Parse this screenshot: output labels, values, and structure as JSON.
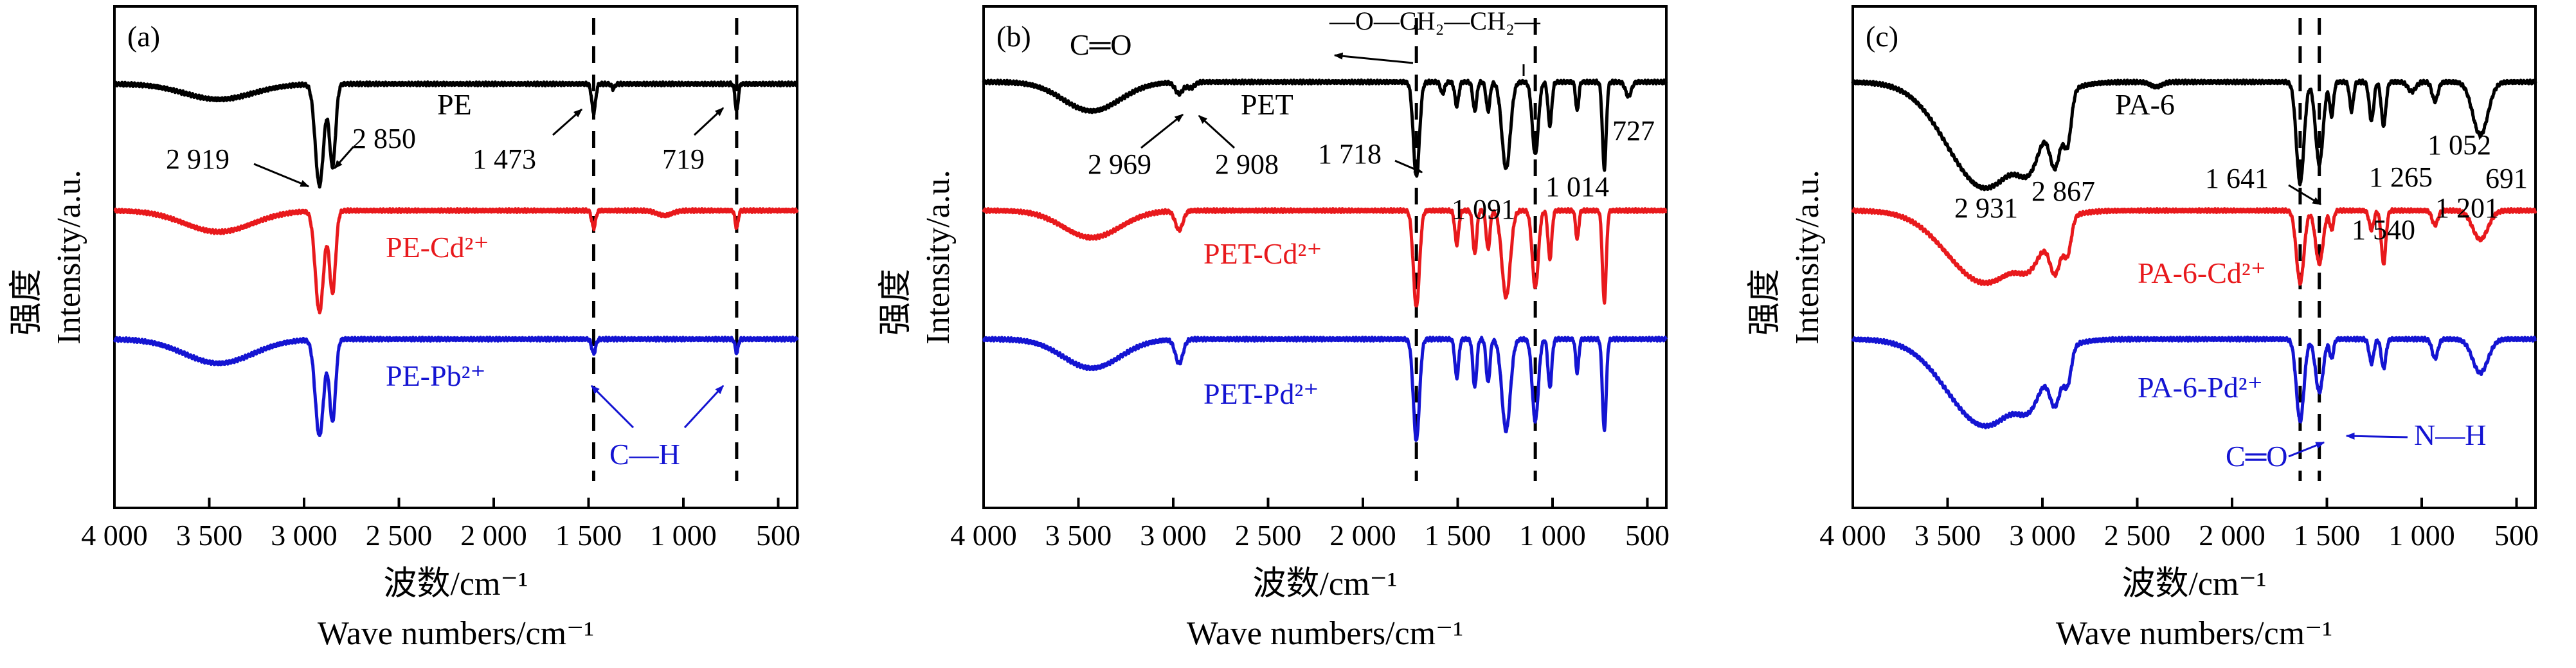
{
  "figure": {
    "x_axis_label_cn": "波数/cm⁻¹",
    "x_axis_label_en": "Wave numbers/cm⁻¹",
    "y_axis_label_cn": "强度",
    "y_axis_label_en": "Intensity/a.u."
  },
  "colors": {
    "black": "#000000",
    "red": "#e8191c",
    "blue": "#1414d2"
  },
  "chart_data": [
    {
      "type": "line",
      "panel_label": "(a)",
      "xlim": [
        4000,
        400
      ],
      "x_ticks": [
        4000,
        3500,
        3000,
        2500,
        2000,
        1500,
        1000,
        500
      ],
      "x_tick_labels": [
        "4 000",
        "3 500",
        "3 000",
        "2 500",
        "2 000",
        "1 500",
        "1 000",
        "500"
      ],
      "y_ticks": false,
      "dashed_lines": [
        1473,
        719
      ],
      "series": [
        {
          "name": "PE",
          "color": "black",
          "offset": 0.0,
          "baseline": 0.93,
          "bands": [
            [
              3450,
              0.16,
              180
            ],
            [
              2919,
              1.05,
              22
            ],
            [
              2850,
              0.85,
              16
            ],
            [
              1473,
              0.3,
              10
            ],
            [
              1370,
              0.05,
              8
            ],
            [
              719,
              0.28,
              8
            ]
          ]
        },
        {
          "name": "PE-Cd²⁺",
          "color": "red",
          "offset": 1.0,
          "baseline": 0.95,
          "bands": [
            [
              3450,
              0.22,
              180
            ],
            [
              2919,
              1.05,
              22
            ],
            [
              2850,
              0.85,
              16
            ],
            [
              1473,
              0.18,
              10
            ],
            [
              1100,
              0.05,
              40
            ],
            [
              719,
              0.18,
              8
            ]
          ]
        },
        {
          "name": "PE-Pb²⁺",
          "color": "blue",
          "offset": 2.0,
          "baseline": 0.95,
          "bands": [
            [
              3450,
              0.25,
              180
            ],
            [
              2919,
              1.0,
              22
            ],
            [
              2850,
              0.85,
              16
            ],
            [
              1473,
              0.15,
              10
            ],
            [
              719,
              0.14,
              8
            ]
          ]
        }
      ],
      "annotations": [
        "2 919",
        "2 850",
        "1 473",
        "719",
        "C—H"
      ]
    },
    {
      "type": "line",
      "panel_label": "(b)",
      "xlim": [
        4000,
        400
      ],
      "x_ticks": [
        4000,
        3500,
        3000,
        2500,
        2000,
        1500,
        1000,
        500
      ],
      "x_tick_labels": [
        "4 000",
        "3 500",
        "3 000",
        "2 500",
        "2 000",
        "1 500",
        "1 000",
        "500"
      ],
      "y_ticks": false,
      "dashed_lines": [
        1718,
        1091
      ],
      "series": [
        {
          "name": "PET",
          "color": "black",
          "offset": 0.0,
          "baseline": 0.95,
          "bands": [
            [
              3430,
              0.3,
              150
            ],
            [
              2969,
              0.12,
              20
            ],
            [
              2908,
              0.06,
              20
            ],
            [
              1718,
              0.98,
              16
            ],
            [
              1580,
              0.12,
              10
            ],
            [
              1505,
              0.25,
              10
            ],
            [
              1410,
              0.3,
              10
            ],
            [
              1340,
              0.3,
              10
            ],
            [
              1245,
              0.9,
              22
            ],
            [
              1091,
              0.75,
              16
            ],
            [
              1014,
              0.45,
              10
            ],
            [
              870,
              0.3,
              8
            ],
            [
              727,
              0.9,
              10
            ],
            [
              600,
              0.15,
              15
            ]
          ]
        },
        {
          "name": "PET-Cd²⁺",
          "color": "red",
          "offset": 1.0,
          "baseline": 0.95,
          "bands": [
            [
              3430,
              0.28,
              150
            ],
            [
              2969,
              0.2,
              20
            ],
            [
              1718,
              1.0,
              16
            ],
            [
              1505,
              0.35,
              10
            ],
            [
              1410,
              0.45,
              10
            ],
            [
              1340,
              0.4,
              10
            ],
            [
              1245,
              0.9,
              22
            ],
            [
              1091,
              0.8,
              16
            ],
            [
              1014,
              0.5,
              10
            ],
            [
              870,
              0.3,
              8
            ],
            [
              727,
              0.95,
              10
            ]
          ]
        },
        {
          "name": "PET-Pd²⁺",
          "color": "blue",
          "offset": 2.0,
          "baseline": 0.95,
          "bands": [
            [
              3430,
              0.3,
              150
            ],
            [
              2969,
              0.25,
              20
            ],
            [
              1718,
              1.05,
              16
            ],
            [
              1505,
              0.4,
              10
            ],
            [
              1410,
              0.5,
              10
            ],
            [
              1340,
              0.45,
              10
            ],
            [
              1245,
              0.95,
              22
            ],
            [
              1091,
              0.85,
              16
            ],
            [
              1014,
              0.5,
              10
            ],
            [
              870,
              0.35,
              8
            ],
            [
              727,
              0.95,
              10
            ]
          ]
        }
      ],
      "annotations": [
        "C═O",
        "—O—CH₂—CH₂—",
        "2 969",
        "2 908",
        "1 718",
        "1 091",
        "1 014",
        "727"
      ]
    },
    {
      "type": "line",
      "panel_label": "(c)",
      "xlim": [
        4000,
        400
      ],
      "x_ticks": [
        4000,
        3500,
        3000,
        2500,
        2000,
        1500,
        1000,
        500
      ],
      "x_tick_labels": [
        "4 000",
        "3 500",
        "3 000",
        "2 500",
        "2 000",
        "1 500",
        "1 000",
        "500"
      ],
      "y_ticks": false,
      "dashed_lines": [
        1641,
        1540
      ],
      "series": [
        {
          "name": "PA-6",
          "color": "black",
          "offset": 0.0,
          "baseline": 0.95,
          "bands": [
            [
              3300,
              1.1,
              200
            ],
            [
              3060,
              0.4,
              60
            ],
            [
              2931,
              0.65,
              30
            ],
            [
              2867,
              0.5,
              20
            ],
            [
              2400,
              0.05,
              30
            ],
            [
              1641,
              1.05,
              20
            ],
            [
              1540,
              0.85,
              20
            ],
            [
              1475,
              0.35,
              10
            ],
            [
              1370,
              0.3,
              10
            ],
            [
              1265,
              0.4,
              12
            ],
            [
              1201,
              0.45,
              12
            ],
            [
              1052,
              0.1,
              20
            ],
            [
              930,
              0.2,
              15
            ],
            [
              691,
              0.55,
              40
            ]
          ]
        },
        {
          "name": "PA-6-Cd²⁺",
          "color": "red",
          "offset": 1.0,
          "baseline": 0.95,
          "bands": [
            [
              3300,
              0.75,
              200
            ],
            [
              3060,
              0.25,
              60
            ],
            [
              2931,
              0.5,
              30
            ],
            [
              2867,
              0.35,
              20
            ],
            [
              1641,
              0.75,
              20
            ],
            [
              1540,
              0.55,
              20
            ],
            [
              1475,
              0.2,
              10
            ],
            [
              1265,
              0.2,
              12
            ],
            [
              1201,
              0.55,
              12
            ],
            [
              930,
              0.15,
              15
            ],
            [
              691,
              0.3,
              40
            ]
          ]
        },
        {
          "name": "PA-6-Pd²⁺",
          "color": "blue",
          "offset": 2.0,
          "baseline": 0.95,
          "bands": [
            [
              3300,
              0.9,
              200
            ],
            [
              3060,
              0.3,
              60
            ],
            [
              2931,
              0.5,
              30
            ],
            [
              2867,
              0.35,
              20
            ],
            [
              1641,
              0.85,
              20
            ],
            [
              1540,
              0.55,
              20
            ],
            [
              1475,
              0.2,
              10
            ],
            [
              1265,
              0.25,
              12
            ],
            [
              1201,
              0.3,
              12
            ],
            [
              930,
              0.2,
              15
            ],
            [
              691,
              0.35,
              40
            ]
          ]
        }
      ],
      "annotations": [
        "2 931",
        "2 867",
        "1 641",
        "1 540",
        "1 265",
        "1 201",
        "1 052",
        "691",
        "C═O",
        "N—H"
      ]
    }
  ]
}
